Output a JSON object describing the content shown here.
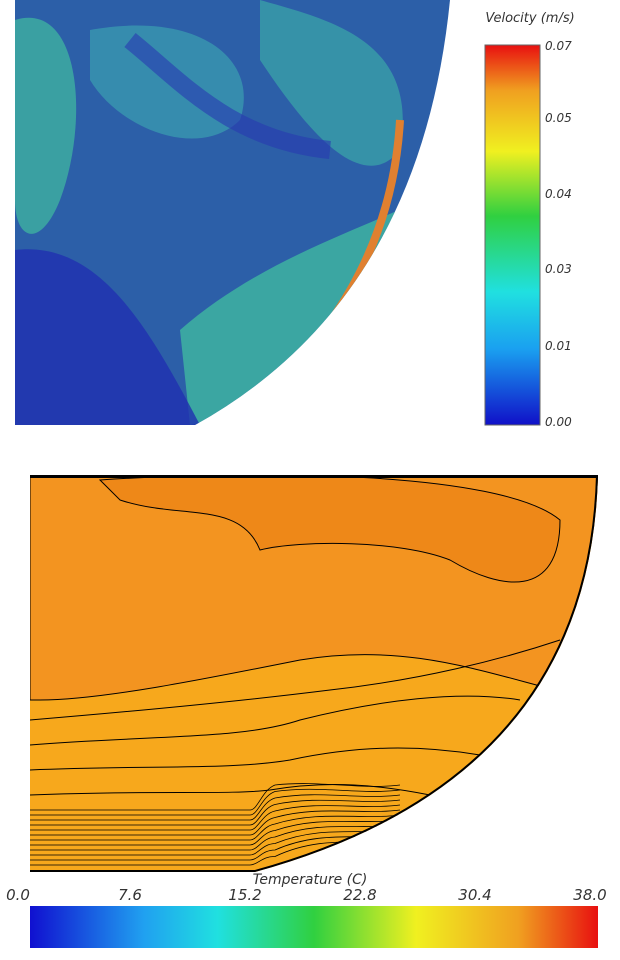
{
  "velocity_colorbar": {
    "title": "Velocity (m/s)",
    "ticks": [
      "0.07",
      "0.05",
      "0.04",
      "0.03",
      "0.01",
      "0.00"
    ]
  },
  "temperature_colorbar": {
    "title": "Temperature (C)",
    "ticks": [
      "0.0",
      "7.6",
      "15.2",
      "22.8",
      "30.4",
      "38.0"
    ]
  }
}
